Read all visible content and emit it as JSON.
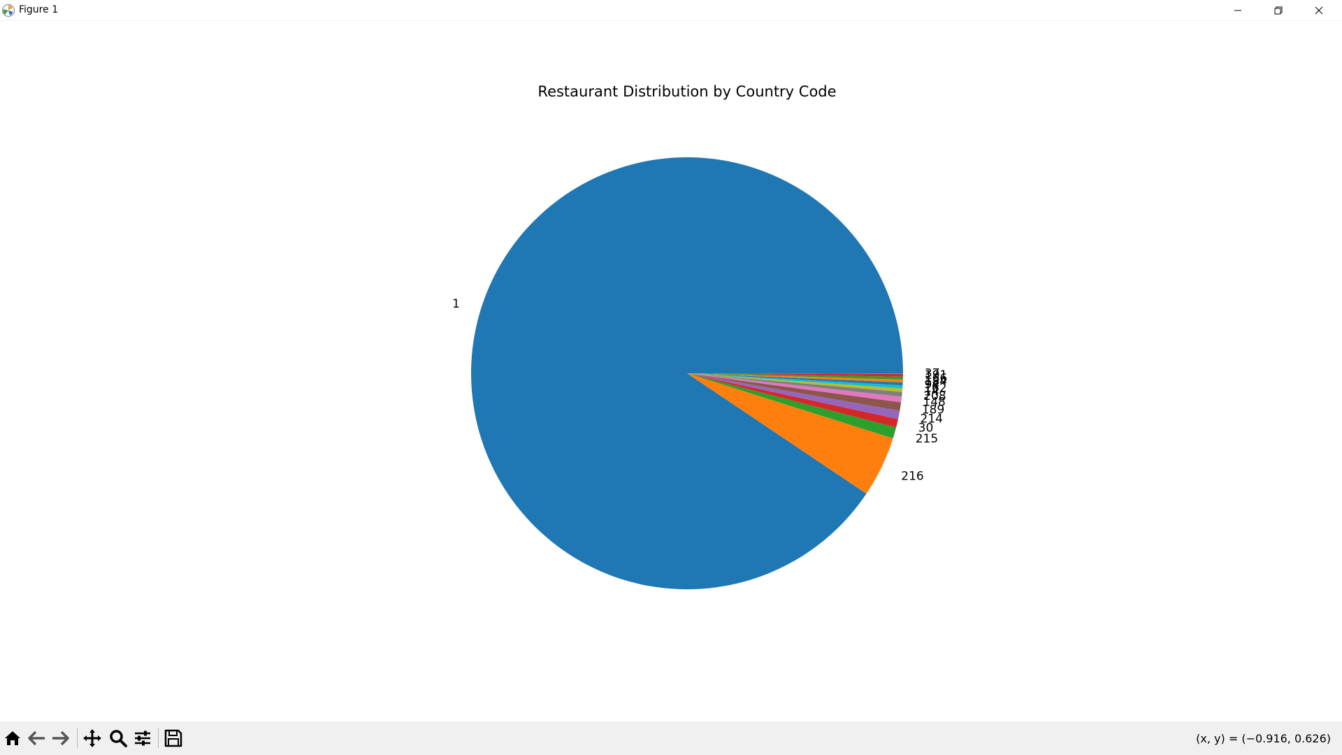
{
  "window": {
    "title": "Figure 1",
    "controls": [
      "minimize",
      "restore",
      "close"
    ]
  },
  "toolbar": {
    "buttons": [
      {
        "name": "home-button",
        "icon": "home-icon"
      },
      {
        "name": "back-button",
        "icon": "arrow-left-icon"
      },
      {
        "name": "forward-button",
        "icon": "arrow-right-icon"
      },
      {
        "name": "pan-button",
        "icon": "move-icon"
      },
      {
        "name": "zoom-button",
        "icon": "magnifier-icon"
      },
      {
        "name": "configure-subplots-button",
        "icon": "sliders-icon"
      },
      {
        "name": "save-button",
        "icon": "floppy-disk-icon"
      }
    ],
    "coordinates": "(x, y) = (−0.916, 0.626)"
  },
  "chart_data": {
    "type": "pie",
    "title": "Restaurant Distribution by Country Code",
    "labels": [
      "1",
      "216",
      "215",
      "30",
      "214",
      "189",
      "148",
      "208",
      "14",
      "162",
      "94",
      "184",
      "166",
      "191",
      "37"
    ],
    "values": [
      8652,
      434,
      80,
      60,
      60,
      60,
      40,
      34,
      24,
      22,
      21,
      20,
      20,
      20,
      4
    ],
    "colors": [
      "#1f77b4",
      "#ff7f0e",
      "#2ca02c",
      "#d62728",
      "#9467bd",
      "#8c564b",
      "#e377c2",
      "#7f7f7f",
      "#bcbd22",
      "#17becf",
      "#1f77b4",
      "#ff7f0e",
      "#2ca02c",
      "#d62728",
      "#9467bd"
    ],
    "start_angle": 0,
    "direction": "counterclockwise"
  }
}
